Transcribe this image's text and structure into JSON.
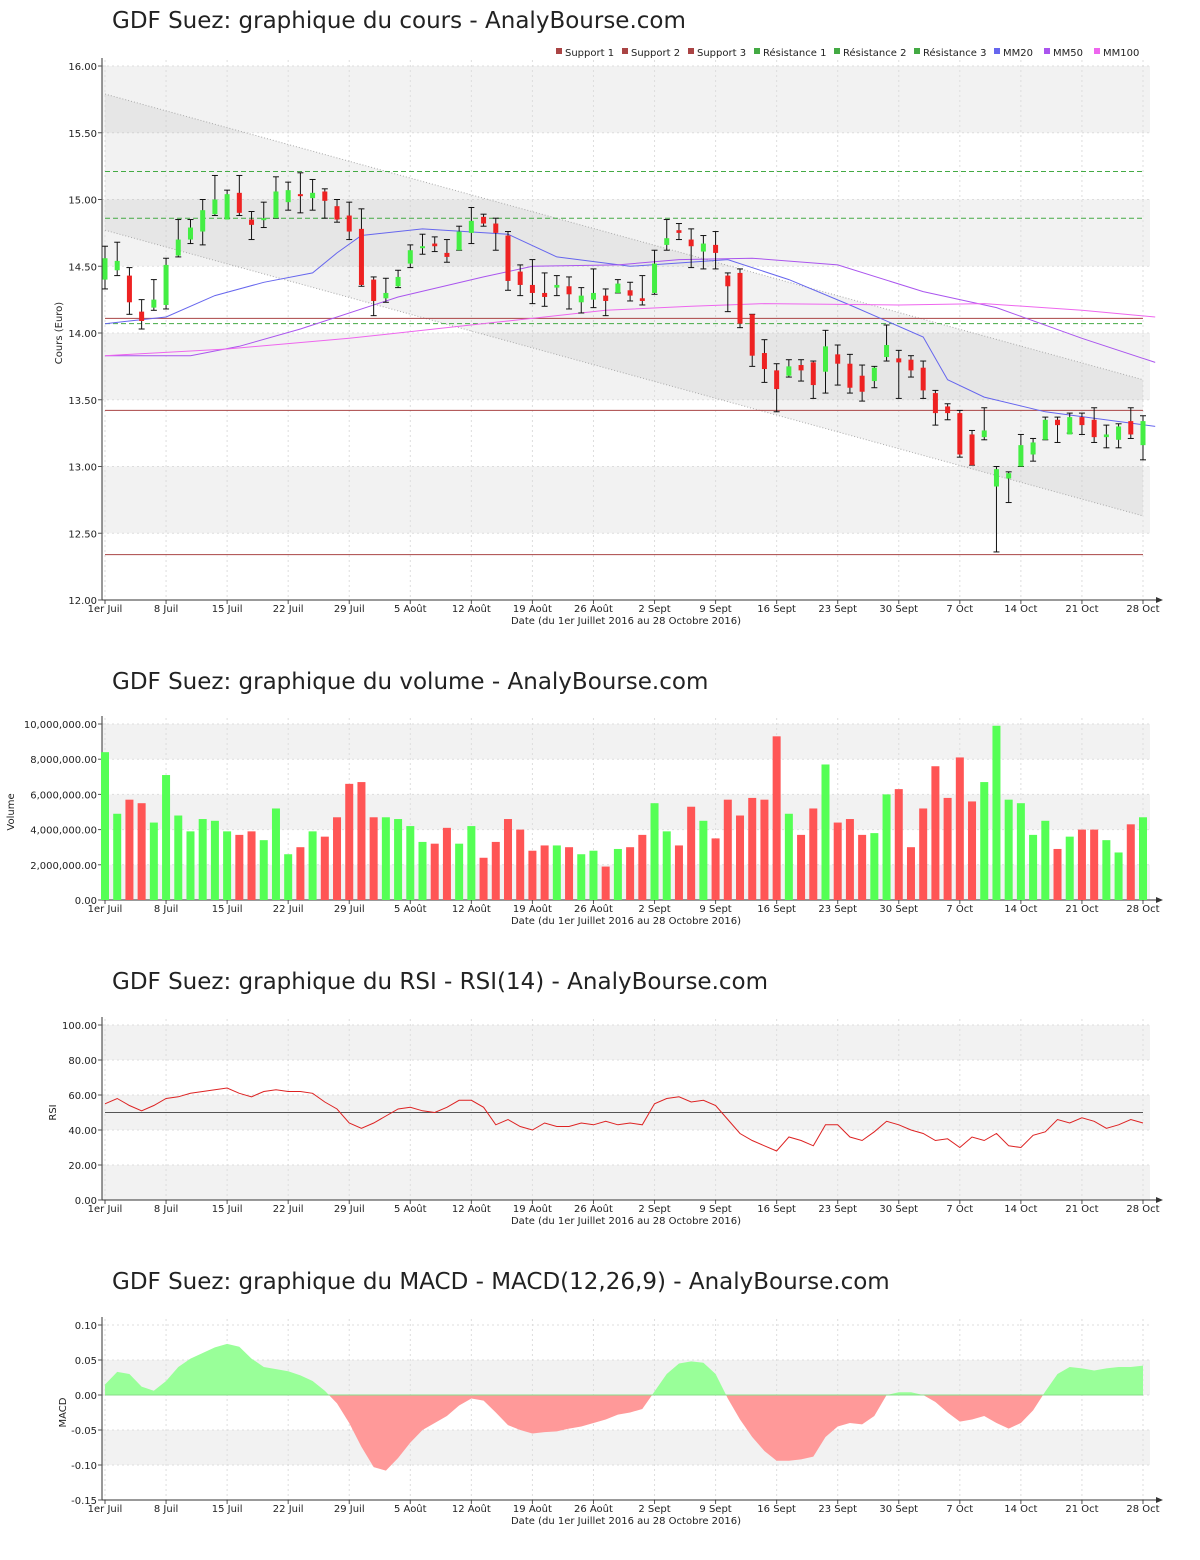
{
  "chart_data": [
    {
      "type": "candlestick",
      "title": "GDF Suez: graphique du cours - AnalyBourse.com",
      "xlabel": "Date (du 1er Juillet 2016 au 28 Octobre 2016)",
      "ylabel": "Cours (Euro)",
      "ylim": [
        12.0,
        16.0
      ],
      "yticks": [
        "12.00",
        "12.50",
        "13.00",
        "13.50",
        "14.00",
        "14.50",
        "15.00",
        "15.50",
        "16.00"
      ],
      "x_ticks": [
        "1er Juil",
        "8 Juil",
        "15 Juil",
        "22 Juil",
        "29 Juil",
        "5 Août",
        "12 Août",
        "19 Août",
        "26 Août",
        "2 Sept",
        "9 Sept",
        "16 Sept",
        "23 Sept",
        "30 Sept",
        "7 Oct",
        "14 Oct",
        "21 Oct",
        "28 Oct"
      ],
      "legend": [
        "Support 1",
        "Support 2",
        "Support 3",
        "Résistance 1",
        "Résistance 2",
        "Résistance 3",
        "MM20",
        "MM50",
        "MM100"
      ],
      "legend_placement": "top-right",
      "levels": {
        "Support 1": 14.11,
        "Support 2": 13.42,
        "Support 3": 12.34,
        "Résistance 1": 15.21,
        "Résistance 2": 14.86,
        "Résistance 3": 14.07
      },
      "colors": {
        "up": "#44ee44",
        "down": "#ee2222",
        "support": "#aa4444",
        "resistance": "#44aa44",
        "mm20": "#6666ee",
        "mm50": "#aa55ee",
        "mm100": "#ee66ee"
      },
      "trend_channel": {
        "upper": [
          15.79,
          13.65
        ],
        "lower": [
          14.77,
          12.63
        ]
      },
      "candles": [
        [
          14.4,
          14.56,
          14.65,
          14.33
        ],
        [
          14.47,
          14.54,
          14.68,
          14.43
        ],
        [
          14.43,
          14.23,
          14.49,
          14.14
        ],
        [
          14.16,
          14.09,
          14.25,
          14.03
        ],
        [
          14.19,
          14.25,
          14.4,
          14.17
        ],
        [
          14.21,
          14.51,
          14.56,
          14.18
        ],
        [
          14.58,
          14.7,
          14.85,
          14.57
        ],
        [
          14.7,
          14.79,
          14.85,
          14.67
        ],
        [
          14.76,
          14.92,
          15.0,
          14.66
        ],
        [
          14.89,
          15.0,
          15.18,
          14.88
        ],
        [
          14.85,
          15.04,
          15.07,
          14.86
        ],
        [
          15.05,
          14.9,
          15.18,
          14.88
        ],
        [
          14.85,
          14.81,
          14.91,
          14.7
        ],
        [
          14.85,
          14.86,
          14.98,
          14.79
        ],
        [
          14.86,
          15.06,
          15.17,
          14.86
        ],
        [
          14.98,
          15.07,
          15.13,
          14.92
        ],
        [
          15.04,
          15.03,
          15.2,
          14.9
        ],
        [
          15.01,
          15.05,
          15.15,
          14.92
        ],
        [
          15.06,
          14.99,
          15.08,
          14.86
        ],
        [
          14.95,
          14.85,
          15.0,
          14.83
        ],
        [
          14.88,
          14.76,
          14.98,
          14.7
        ],
        [
          14.78,
          14.36,
          14.93,
          14.35
        ],
        [
          14.4,
          14.24,
          14.42,
          14.13
        ],
        [
          14.26,
          14.3,
          14.41,
          14.23
        ],
        [
          14.35,
          14.42,
          14.47,
          14.34
        ],
        [
          14.52,
          14.62,
          14.66,
          14.49
        ],
        [
          14.64,
          14.65,
          14.74,
          14.59
        ],
        [
          14.67,
          14.65,
          14.72,
          14.61
        ],
        [
          14.6,
          14.57,
          14.7,
          14.53
        ],
        [
          14.62,
          14.76,
          14.8,
          14.62
        ],
        [
          14.75,
          14.84,
          14.94,
          14.67
        ],
        [
          14.87,
          14.82,
          14.89,
          14.8
        ],
        [
          14.82,
          14.75,
          14.86,
          14.62
        ],
        [
          14.73,
          14.39,
          14.76,
          14.32
        ],
        [
          14.46,
          14.36,
          14.51,
          14.28
        ],
        [
          14.36,
          14.3,
          14.55,
          14.22
        ],
        [
          14.3,
          14.27,
          14.45,
          14.2
        ],
        [
          14.34,
          14.36,
          14.43,
          14.28
        ],
        [
          14.35,
          14.29,
          14.42,
          14.18
        ],
        [
          14.23,
          14.28,
          14.34,
          14.15
        ],
        [
          14.25,
          14.3,
          14.48,
          14.19
        ],
        [
          14.28,
          14.24,
          14.33,
          14.13
        ],
        [
          14.3,
          14.37,
          14.4,
          14.3
        ],
        [
          14.32,
          14.28,
          14.38,
          14.24
        ],
        [
          14.26,
          14.24,
          14.43,
          14.21
        ],
        [
          14.3,
          14.52,
          14.62,
          14.29
        ],
        [
          14.66,
          14.71,
          14.85,
          14.62
        ],
        [
          14.77,
          14.75,
          14.82,
          14.7
        ],
        [
          14.7,
          14.65,
          14.78,
          14.49
        ],
        [
          14.61,
          14.67,
          14.73,
          14.48
        ],
        [
          14.66,
          14.6,
          14.76,
          14.48
        ],
        [
          14.43,
          14.35,
          14.45,
          14.16
        ],
        [
          14.45,
          14.07,
          14.48,
          14.04
        ],
        [
          14.14,
          13.83,
          14.14,
          13.75
        ],
        [
          13.85,
          13.73,
          13.95,
          13.63
        ],
        [
          13.72,
          13.58,
          13.77,
          13.41
        ],
        [
          13.68,
          13.75,
          13.8,
          13.67
        ],
        [
          13.76,
          13.72,
          13.8,
          13.64
        ],
        [
          13.78,
          13.61,
          13.79,
          13.51
        ],
        [
          13.71,
          13.9,
          14.02,
          13.55
        ],
        [
          13.84,
          13.77,
          13.91,
          13.61
        ],
        [
          13.77,
          13.59,
          13.84,
          13.55
        ],
        [
          13.68,
          13.56,
          13.76,
          13.49
        ],
        [
          13.64,
          13.74,
          13.75,
          13.59
        ],
        [
          13.82,
          13.91,
          14.06,
          13.79
        ],
        [
          13.81,
          13.78,
          13.87,
          13.51
        ],
        [
          13.8,
          13.72,
          13.83,
          13.67
        ],
        [
          13.74,
          13.57,
          13.79,
          13.51
        ],
        [
          13.55,
          13.4,
          13.57,
          13.31
        ],
        [
          13.45,
          13.4,
          13.47,
          13.35
        ],
        [
          13.4,
          13.09,
          13.42,
          13.07
        ],
        [
          13.24,
          13.01,
          13.27,
          13.01
        ],
        [
          13.22,
          13.27,
          13.44,
          13.2
        ],
        [
          12.85,
          12.98,
          13.0,
          12.36
        ],
        [
          12.91,
          12.95,
          12.96,
          12.73
        ],
        [
          13.0,
          13.16,
          13.24,
          13.0
        ],
        [
          13.09,
          13.18,
          13.21,
          13.04
        ],
        [
          13.2,
          13.35,
          13.37,
          13.2
        ],
        [
          13.35,
          13.31,
          13.37,
          13.18
        ],
        [
          13.24,
          13.37,
          13.4,
          13.25
        ],
        [
          13.37,
          13.31,
          13.4,
          13.24
        ],
        [
          13.35,
          13.22,
          13.44,
          13.18
        ],
        [
          13.22,
          13.24,
          13.31,
          13.14
        ],
        [
          13.2,
          13.3,
          13.32,
          13.14
        ],
        [
          13.34,
          13.24,
          13.44,
          13.21
        ],
        [
          13.16,
          13.34,
          13.38,
          13.05
        ]
      ],
      "series": [
        {
          "name": "MM20",
          "values": [
            [
              0,
              14.07
            ],
            [
              5,
              14.12
            ],
            [
              9,
              14.28
            ],
            [
              13,
              14.38
            ],
            [
              17,
              14.45
            ],
            [
              19,
              14.6
            ],
            [
              21,
              14.73
            ],
            [
              26,
              14.78
            ],
            [
              33,
              14.74
            ],
            [
              37,
              14.57
            ],
            [
              43,
              14.5
            ],
            [
              51,
              14.55
            ],
            [
              56,
              14.4
            ],
            [
              61,
              14.21
            ],
            [
              67,
              13.97
            ],
            [
              69,
              13.65
            ],
            [
              72,
              13.52
            ],
            [
              77,
              13.41
            ],
            [
              86,
              13.3
            ]
          ]
        },
        {
          "name": "MM50",
          "values": [
            [
              0,
              13.83
            ],
            [
              7,
              13.83
            ],
            [
              11,
              13.9
            ],
            [
              16,
              14.03
            ],
            [
              24,
              14.27
            ],
            [
              31,
              14.42
            ],
            [
              35,
              14.5
            ],
            [
              42,
              14.51
            ],
            [
              47,
              14.55
            ],
            [
              53,
              14.56
            ],
            [
              60,
              14.51
            ],
            [
              67,
              14.31
            ],
            [
              73,
              14.19
            ],
            [
              80,
              13.96
            ],
            [
              86,
              13.78
            ]
          ]
        },
        {
          "name": "MM100",
          "values": [
            [
              0,
              13.83
            ],
            [
              10,
              13.88
            ],
            [
              20,
              13.96
            ],
            [
              32,
              14.08
            ],
            [
              41,
              14.17
            ],
            [
              48,
              14.2
            ],
            [
              54,
              14.22
            ],
            [
              65,
              14.21
            ],
            [
              72,
              14.22
            ],
            [
              80,
              14.17
            ],
            [
              86,
              14.12
            ]
          ]
        }
      ]
    },
    {
      "type": "bar",
      "title": "GDF Suez: graphique du volume - AnalyBourse.com",
      "xlabel": "Date (du 1er Juillet 2016 au 28 Octobre 2016)",
      "ylabel": "Volume",
      "ylim": [
        0,
        10000000
      ],
      "yticks": [
        "0.00",
        "2,000,000.00",
        "4,000,000.00",
        "6,000,000.00",
        "8,000,000.00",
        "10,000,000.00"
      ],
      "values": [
        8400000,
        4900000,
        5700000,
        5500000,
        4400000,
        7100000,
        4800000,
        3900000,
        4600000,
        4500000,
        3900000,
        3700000,
        3900000,
        3400000,
        5200000,
        2600000,
        3000000,
        3900000,
        3600000,
        4700000,
        6600000,
        6700000,
        4700000,
        4700000,
        4600000,
        4200000,
        3300000,
        3200000,
        4100000,
        3200000,
        4200000,
        2400000,
        3300000,
        4600000,
        4000000,
        2800000,
        3100000,
        3100000,
        3000000,
        2600000,
        2800000,
        1900000,
        2900000,
        3000000,
        3700000,
        5500000,
        3900000,
        3100000,
        5300000,
        4500000,
        3500000,
        5700000,
        4800000,
        5800000,
        5700000,
        9300000,
        4900000,
        3700000,
        5200000,
        7700000,
        4400000,
        4600000,
        3700000,
        3800000,
        6000000,
        6300000,
        3000000,
        5200000,
        7600000,
        5800000,
        8100000,
        5600000,
        6700000,
        9900000,
        5700000,
        5500000,
        3700000,
        4500000,
        2900000,
        3600000,
        4000000,
        4000000,
        3400000,
        2700000,
        4300000,
        4700000
      ]
    },
    {
      "type": "line",
      "title": "GDF Suez: graphique du RSI - RSI(14) - AnalyBourse.com",
      "xlabel": "Date (du 1er Juillet 2016 au 28 Octobre 2016)",
      "ylabel": "RSI",
      "ylim": [
        0,
        100
      ],
      "yticks": [
        "0.00",
        "20.00",
        "40.00",
        "60.00",
        "80.00",
        "100.00"
      ],
      "reference_line": 50,
      "series": [
        {
          "name": "RSI(14)",
          "values": [
            55,
            58,
            54,
            51,
            54,
            58,
            59,
            61,
            62,
            63,
            64,
            61,
            59,
            62,
            63,
            62,
            62,
            61,
            56,
            52,
            44,
            41,
            44,
            48,
            52,
            53,
            51,
            50,
            53,
            57,
            57,
            53,
            43,
            46,
            42,
            40,
            44,
            42,
            42,
            44,
            43,
            45,
            43,
            44,
            43,
            55,
            58,
            59,
            56,
            57,
            54,
            46,
            38,
            34,
            31,
            28,
            36,
            34,
            31,
            43,
            43,
            36,
            34,
            39,
            45,
            43,
            40,
            38,
            34,
            35,
            30,
            36,
            34,
            38,
            31,
            30,
            37,
            39,
            46,
            44,
            47,
            45,
            41,
            43,
            46,
            44
          ]
        }
      ]
    },
    {
      "type": "area",
      "title": "GDF Suez: graphique du MACD - MACD(12,26,9) - AnalyBourse.com",
      "xlabel": "Date (du 1er Juillet 2016 au 28 Octobre 2016)",
      "ylabel": "MACD",
      "ylim": [
        -0.15,
        0.1
      ],
      "yticks": [
        "-0.15",
        "-0.10",
        "-0.05",
        "0.00",
        "0.05",
        "0.10"
      ],
      "colors": {
        "positive": "#99ff99",
        "negative": "#ff9999"
      },
      "series": [
        {
          "name": "MACD(12,26,9)",
          "values": [
            0.015,
            0.033,
            0.03,
            0.012,
            0.006,
            0.02,
            0.04,
            0.052,
            0.06,
            0.068,
            0.073,
            0.069,
            0.052,
            0.04,
            0.037,
            0.034,
            0.028,
            0.02,
            0.006,
            -0.012,
            -0.04,
            -0.074,
            -0.103,
            -0.108,
            -0.09,
            -0.068,
            -0.05,
            -0.04,
            -0.03,
            -0.015,
            -0.005,
            -0.008,
            -0.025,
            -0.043,
            -0.05,
            -0.055,
            -0.053,
            -0.052,
            -0.048,
            -0.045,
            -0.04,
            -0.035,
            -0.028,
            -0.025,
            -0.02,
            0.005,
            0.03,
            0.045,
            0.048,
            0.046,
            0.03,
            -0.005,
            -0.035,
            -0.06,
            -0.08,
            -0.094,
            -0.094,
            -0.092,
            -0.088,
            -0.06,
            -0.045,
            -0.04,
            -0.042,
            -0.03,
            0.0,
            0.004,
            0.004,
            0.0,
            -0.01,
            -0.025,
            -0.038,
            -0.035,
            -0.03,
            -0.04,
            -0.048,
            -0.04,
            -0.022,
            0.005,
            0.03,
            0.04,
            0.038,
            0.035,
            0.038,
            0.04,
            0.04,
            0.042
          ]
        }
      ]
    }
  ]
}
